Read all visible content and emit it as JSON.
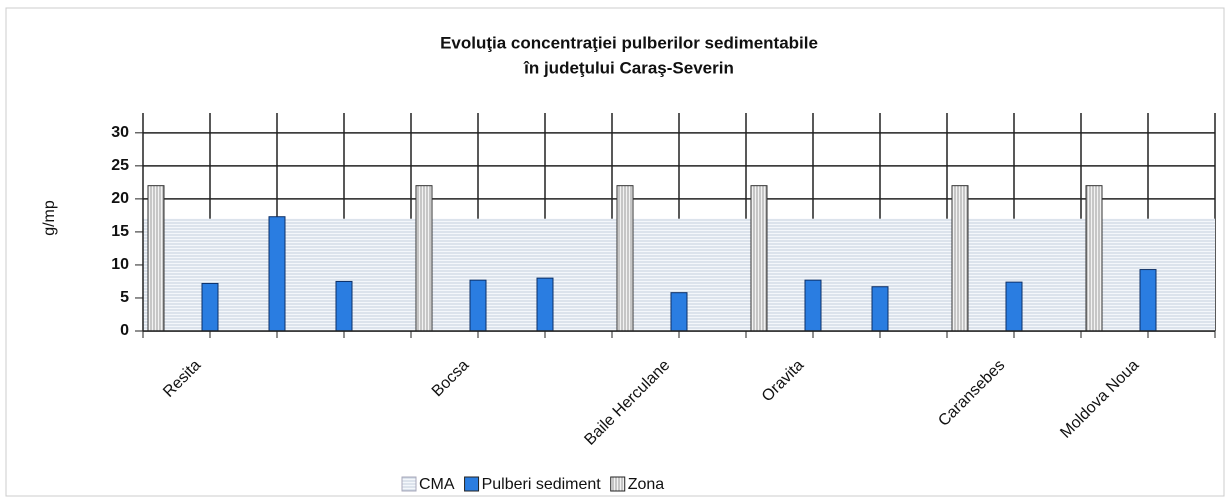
{
  "chart_data": {
    "type": "bar",
    "title": [
      "Evoluţia concentraţiei  pulberilor sedimentabile",
      "în judeţului Caraş-Severin"
    ],
    "y_label": "g/mp",
    "categories": [
      "Resita",
      null,
      null,
      null,
      "Bocsa",
      null,
      null,
      "Baile Herculane",
      null,
      "Oravita",
      null,
      null,
      "Caransebes",
      null,
      "Moldova Noua",
      null
    ],
    "series": [
      {
        "name": "CMA",
        "color": "#dfe7f0",
        "values": [
          17,
          17,
          17,
          17,
          17,
          17,
          17,
          17,
          17,
          17,
          17,
          17,
          17,
          17,
          17,
          17
        ]
      },
      {
        "name": "Pulberi sediment",
        "color": "#2a7de1",
        "values": [
          7.2,
          17.3,
          7.5,
          null,
          7.7,
          8,
          null,
          5.8,
          null,
          7.7,
          6.7,
          null,
          7.4,
          null,
          9.3,
          null
        ]
      },
      {
        "name": "Zona",
        "color": "#d9d9d9",
        "values": [
          22,
          null,
          null,
          null,
          22,
          null,
          null,
          22,
          null,
          22,
          null,
          null,
          22,
          null,
          22,
          null
        ]
      }
    ],
    "ylim": [
      0,
      33
    ],
    "yticks": [
      0,
      5,
      10,
      15,
      20,
      25,
      30
    ],
    "grid": true
  }
}
